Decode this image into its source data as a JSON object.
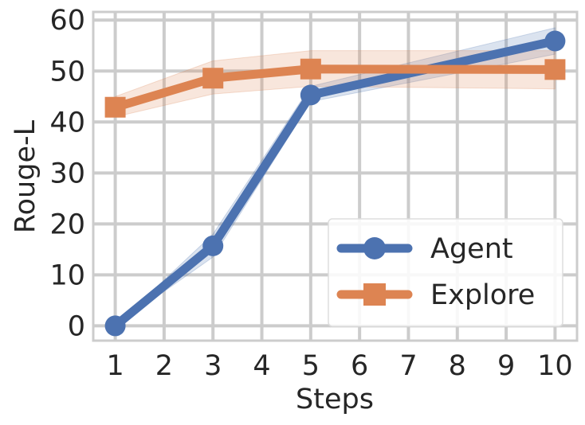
{
  "chart_data": {
    "type": "line",
    "x_label": "Steps",
    "y_label": "Rouge-L",
    "xlim": [
      0.55,
      10.45
    ],
    "ylim": [
      -2.9,
      61.6
    ],
    "xticks": [
      1,
      2,
      3,
      4,
      5,
      6,
      7,
      8,
      9,
      10
    ],
    "yticks": [
      0,
      10,
      20,
      30,
      40,
      50,
      60
    ],
    "grid": true,
    "legend": "lower right",
    "series": [
      {
        "name": "Agent",
        "color": "#4c72b0",
        "marker": "circle",
        "x": [
          1,
          3,
          5,
          10
        ],
        "values": [
          0,
          15.7,
          45.3,
          55.9
        ],
        "lower": [
          0,
          13.5,
          44,
          53.3
        ],
        "upper": [
          0,
          18,
          47,
          58.5
        ]
      },
      {
        "name": "Explore",
        "color": "#dd8452",
        "marker": "square",
        "x": [
          1,
          3,
          5,
          10
        ],
        "values": [
          42.9,
          48.6,
          50.4,
          50.3
        ],
        "lower": [
          41,
          45.5,
          47,
          46.5
        ],
        "upper": [
          45,
          52,
          54,
          54
        ]
      }
    ]
  }
}
